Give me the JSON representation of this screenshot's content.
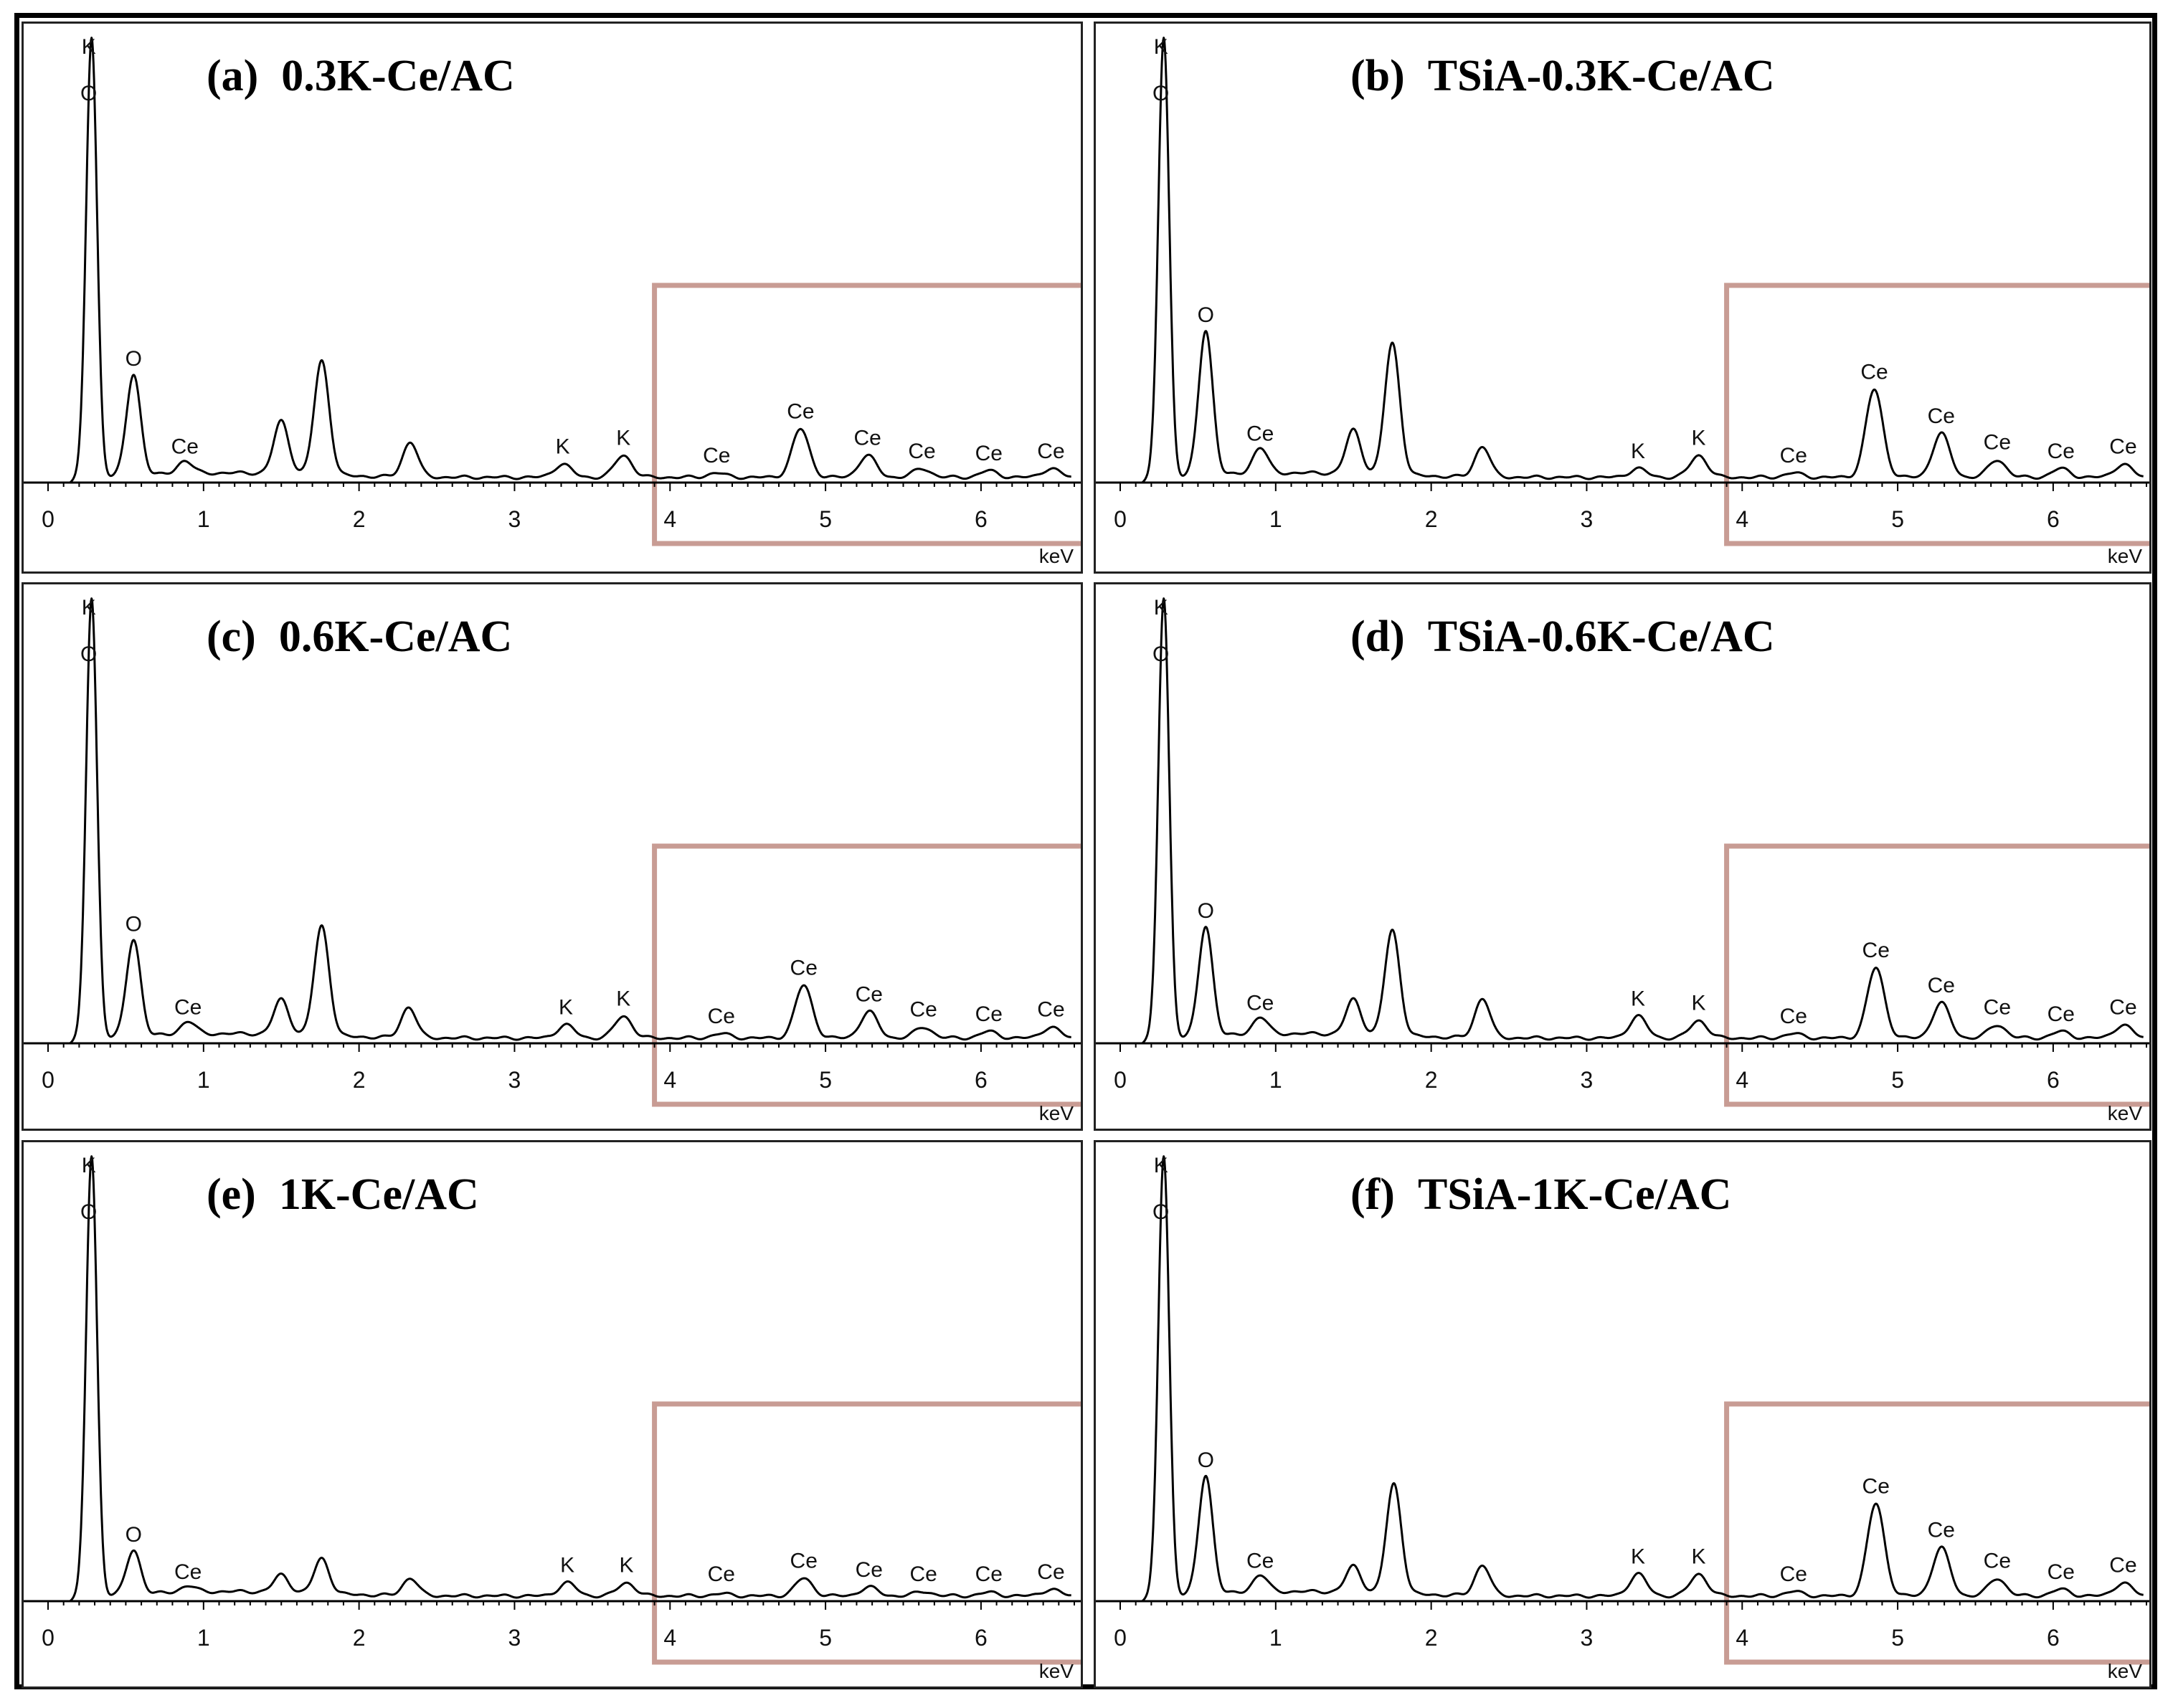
{
  "figure": {
    "x_unit": "keV",
    "x_ticks": [
      0,
      1,
      2,
      3,
      4,
      5,
      6
    ],
    "highlight_color": "#c89c94",
    "highlight_range_keV": [
      3.9,
      6.5
    ]
  },
  "chart_data": [
    {
      "type": "line",
      "panel_label": "(a)",
      "title": "0.3K-Ce/AC",
      "xlabel": "keV",
      "xlim": [
        0,
        6.6
      ],
      "ylim": [
        0,
        1
      ],
      "grid": false,
      "peaks": [
        {
          "x": 0.28,
          "y": 1.0,
          "label": "K"
        },
        {
          "x": 0.55,
          "y": 0.23,
          "label": "O"
        },
        {
          "x": 0.88,
          "y": 0.03,
          "label": "Ce"
        },
        {
          "x": 1.5,
          "y": 0.12,
          "label": ""
        },
        {
          "x": 1.76,
          "y": 0.26,
          "label": ""
        },
        {
          "x": 2.33,
          "y": 0.08,
          "label": ""
        },
        {
          "x": 3.31,
          "y": 0.03,
          "label": "K"
        },
        {
          "x": 3.7,
          "y": 0.05,
          "label": "K"
        },
        {
          "x": 4.3,
          "y": 0.01,
          "label": "Ce"
        },
        {
          "x": 4.84,
          "y": 0.11,
          "label": "Ce"
        },
        {
          "x": 5.27,
          "y": 0.05,
          "label": "Ce"
        },
        {
          "x": 5.62,
          "y": 0.02,
          "label": "Ce"
        },
        {
          "x": 6.05,
          "y": 0.015,
          "label": "Ce"
        },
        {
          "x": 6.45,
          "y": 0.02,
          "label": "Ce"
        }
      ]
    },
    {
      "type": "line",
      "panel_label": "(b)",
      "title": "TSiA-0.3K-Ce/AC",
      "xlabel": "keV",
      "xlim": [
        0,
        6.6
      ],
      "ylim": [
        0,
        1
      ],
      "grid": false,
      "peaks": [
        {
          "x": 0.28,
          "y": 1.0,
          "label": "K"
        },
        {
          "x": 0.55,
          "y": 0.33,
          "label": "O"
        },
        {
          "x": 0.9,
          "y": 0.06,
          "label": "Ce"
        },
        {
          "x": 1.5,
          "y": 0.1,
          "label": ""
        },
        {
          "x": 1.75,
          "y": 0.3,
          "label": ""
        },
        {
          "x": 2.33,
          "y": 0.07,
          "label": ""
        },
        {
          "x": 3.33,
          "y": 0.02,
          "label": "K"
        },
        {
          "x": 3.72,
          "y": 0.05,
          "label": "K"
        },
        {
          "x": 4.33,
          "y": 0.01,
          "label": "Ce"
        },
        {
          "x": 4.85,
          "y": 0.2,
          "label": "Ce"
        },
        {
          "x": 5.28,
          "y": 0.1,
          "label": "Ce"
        },
        {
          "x": 5.64,
          "y": 0.04,
          "label": "Ce"
        },
        {
          "x": 6.05,
          "y": 0.02,
          "label": "Ce"
        },
        {
          "x": 6.45,
          "y": 0.03,
          "label": "Ce"
        }
      ]
    },
    {
      "type": "line",
      "panel_label": "(c)",
      "title": "0.6K-Ce/AC",
      "xlabel": "keV",
      "xlim": [
        0,
        6.6
      ],
      "ylim": [
        0,
        1
      ],
      "grid": false,
      "peaks": [
        {
          "x": 0.28,
          "y": 1.0,
          "label": "K"
        },
        {
          "x": 0.55,
          "y": 0.22,
          "label": "O"
        },
        {
          "x": 0.9,
          "y": 0.03,
          "label": "Ce"
        },
        {
          "x": 1.5,
          "y": 0.08,
          "label": ""
        },
        {
          "x": 1.76,
          "y": 0.25,
          "label": ""
        },
        {
          "x": 2.32,
          "y": 0.07,
          "label": ""
        },
        {
          "x": 3.33,
          "y": 0.03,
          "label": "K"
        },
        {
          "x": 3.7,
          "y": 0.05,
          "label": "K"
        },
        {
          "x": 4.33,
          "y": 0.01,
          "label": "Ce"
        },
        {
          "x": 4.86,
          "y": 0.12,
          "label": "Ce"
        },
        {
          "x": 5.28,
          "y": 0.06,
          "label": "Ce"
        },
        {
          "x": 5.63,
          "y": 0.025,
          "label": "Ce"
        },
        {
          "x": 6.05,
          "y": 0.015,
          "label": "Ce"
        },
        {
          "x": 6.45,
          "y": 0.025,
          "label": "Ce"
        }
      ]
    },
    {
      "type": "line",
      "panel_label": "(d)",
      "title": "TSiA-0.6K-Ce/AC",
      "xlabel": "keV",
      "xlim": [
        0,
        6.6
      ],
      "ylim": [
        0,
        1
      ],
      "grid": false,
      "peaks": [
        {
          "x": 0.28,
          "y": 1.0,
          "label": "K"
        },
        {
          "x": 0.55,
          "y": 0.25,
          "label": "O"
        },
        {
          "x": 0.9,
          "y": 0.04,
          "label": "Ce"
        },
        {
          "x": 1.5,
          "y": 0.08,
          "label": ""
        },
        {
          "x": 1.75,
          "y": 0.24,
          "label": ""
        },
        {
          "x": 2.33,
          "y": 0.09,
          "label": ""
        },
        {
          "x": 3.33,
          "y": 0.05,
          "label": "K"
        },
        {
          "x": 3.72,
          "y": 0.04,
          "label": "K"
        },
        {
          "x": 4.33,
          "y": 0.01,
          "label": "Ce"
        },
        {
          "x": 4.86,
          "y": 0.16,
          "label": "Ce"
        },
        {
          "x": 5.28,
          "y": 0.08,
          "label": "Ce"
        },
        {
          "x": 5.64,
          "y": 0.03,
          "label": "Ce"
        },
        {
          "x": 6.05,
          "y": 0.015,
          "label": "Ce"
        },
        {
          "x": 6.45,
          "y": 0.03,
          "label": "Ce"
        }
      ]
    },
    {
      "type": "line",
      "panel_label": "(e)",
      "title": "1K-Ce/AC",
      "xlabel": "keV",
      "xlim": [
        0,
        6.6
      ],
      "ylim": [
        0,
        1
      ],
      "grid": false,
      "peaks": [
        {
          "x": 0.28,
          "y": 1.0,
          "label": "K"
        },
        {
          "x": 0.55,
          "y": 0.1,
          "label": "O"
        },
        {
          "x": 0.9,
          "y": 0.015,
          "label": "Ce"
        },
        {
          "x": 1.5,
          "y": 0.04,
          "label": ""
        },
        {
          "x": 1.76,
          "y": 0.08,
          "label": ""
        },
        {
          "x": 2.33,
          "y": 0.04,
          "label": ""
        },
        {
          "x": 3.34,
          "y": 0.03,
          "label": "K"
        },
        {
          "x": 3.72,
          "y": 0.03,
          "label": "K"
        },
        {
          "x": 4.33,
          "y": 0.005,
          "label": "Ce"
        },
        {
          "x": 4.86,
          "y": 0.04,
          "label": "Ce"
        },
        {
          "x": 5.28,
          "y": 0.02,
          "label": "Ce"
        },
        {
          "x": 5.63,
          "y": 0.01,
          "label": "Ce"
        },
        {
          "x": 6.05,
          "y": 0.008,
          "label": "Ce"
        },
        {
          "x": 6.45,
          "y": 0.015,
          "label": "Ce"
        }
      ]
    },
    {
      "type": "line",
      "panel_label": "(f)",
      "title": "TSiA-1K-Ce/AC",
      "xlabel": "keV",
      "xlim": [
        0,
        6.6
      ],
      "ylim": [
        0,
        1
      ],
      "grid": false,
      "peaks": [
        {
          "x": 0.28,
          "y": 1.0,
          "label": "K"
        },
        {
          "x": 0.55,
          "y": 0.27,
          "label": "O"
        },
        {
          "x": 0.9,
          "y": 0.04,
          "label": "Ce"
        },
        {
          "x": 1.5,
          "y": 0.06,
          "label": ""
        },
        {
          "x": 1.76,
          "y": 0.25,
          "label": ""
        },
        {
          "x": 2.33,
          "y": 0.07,
          "label": ""
        },
        {
          "x": 3.33,
          "y": 0.05,
          "label": "K"
        },
        {
          "x": 3.72,
          "y": 0.05,
          "label": "K"
        },
        {
          "x": 4.33,
          "y": 0.01,
          "label": "Ce"
        },
        {
          "x": 4.86,
          "y": 0.21,
          "label": "Ce"
        },
        {
          "x": 5.28,
          "y": 0.11,
          "label": "Ce"
        },
        {
          "x": 5.64,
          "y": 0.04,
          "label": "Ce"
        },
        {
          "x": 6.05,
          "y": 0.015,
          "label": "Ce"
        },
        {
          "x": 6.45,
          "y": 0.03,
          "label": "Ce"
        }
      ]
    }
  ]
}
